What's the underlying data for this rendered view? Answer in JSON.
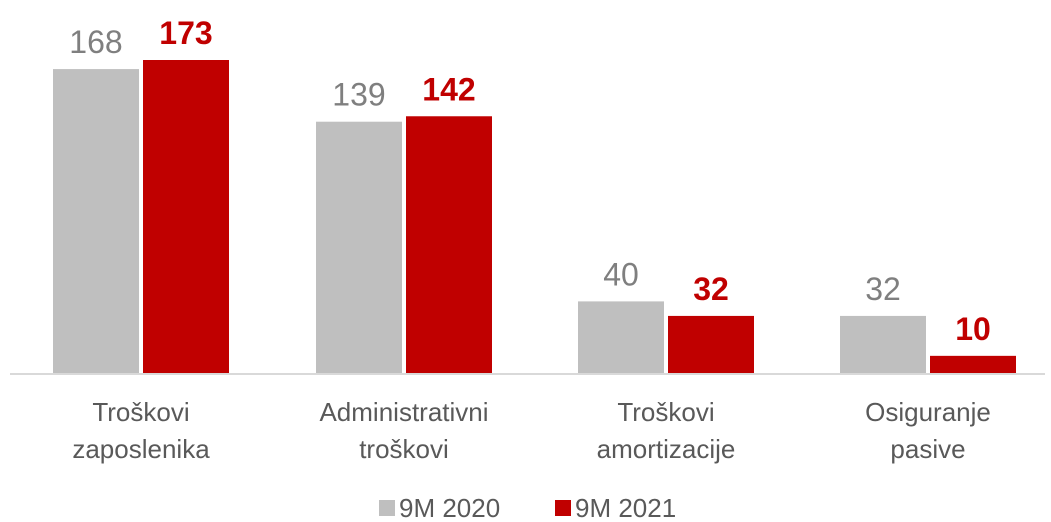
{
  "chart_data": {
    "type": "bar",
    "categories": [
      [
        "Troškovi",
        "zaposlenika"
      ],
      [
        "Administrativni",
        "troškovi"
      ],
      [
        "Troškovi",
        "amortizacije"
      ],
      [
        "Osiguranje",
        "pasive"
      ]
    ],
    "series": [
      {
        "name": "9M 2020",
        "values": [
          168,
          139,
          40,
          32
        ],
        "color": "#bfbfbf",
        "label_color": "#7f7f7f",
        "label_weight": "normal"
      },
      {
        "name": "9M 2021",
        "values": [
          173,
          142,
          32,
          10
        ],
        "color": "#c00000",
        "label_color": "#c00000",
        "label_weight": "bold"
      }
    ],
    "ylim": [
      0,
      173
    ],
    "grid": false,
    "legend_position": "bottom"
  }
}
